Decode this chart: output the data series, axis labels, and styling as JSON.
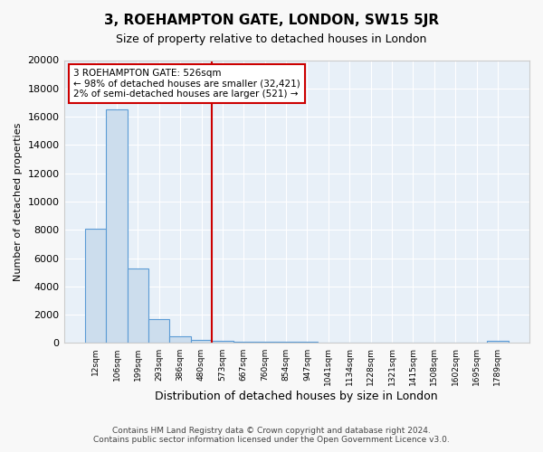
{
  "title": "3, ROEHAMPTON GATE, LONDON, SW15 5JR",
  "subtitle": "Size of property relative to detached houses in London",
  "xlabel": "Distribution of detached houses by size in London",
  "ylabel": "Number of detached properties",
  "bin_labels": [
    "12sqm",
    "106sqm",
    "199sqm",
    "293sqm",
    "386sqm",
    "480sqm",
    "573sqm",
    "667sqm",
    "760sqm",
    "854sqm",
    "947sqm",
    "1041sqm",
    "1134sqm",
    "1228sqm",
    "1321sqm",
    "1415sqm",
    "1508sqm",
    "1602sqm",
    "1695sqm",
    "1789sqm"
  ],
  "bar_heights": [
    8100,
    16500,
    5300,
    1700,
    450,
    200,
    150,
    120,
    100,
    80,
    70,
    60,
    55,
    50,
    45,
    40,
    35,
    30,
    25,
    150
  ],
  "bar_color": "#ccdded",
  "bar_edge_color": "#5b9bd5",
  "property_line_x": 5.5,
  "property_line_color": "#cc0000",
  "annotation_text": "3 ROEHAMPTON GATE: 526sqm\n← 98% of detached houses are smaller (32,421)\n2% of semi-detached houses are larger (521) →",
  "annotation_box_color": "#ffffff",
  "annotation_box_edge": "#cc0000",
  "ylim": [
    0,
    20000
  ],
  "yticks": [
    0,
    2000,
    4000,
    6000,
    8000,
    10000,
    12000,
    14000,
    16000,
    18000,
    20000
  ],
  "footer_line1": "Contains HM Land Registry data © Crown copyright and database right 2024.",
  "footer_line2": "Contains public sector information licensed under the Open Government Licence v3.0.",
  "bg_color": "#f8f8f8",
  "plot_bg_color": "#e8f0f8"
}
